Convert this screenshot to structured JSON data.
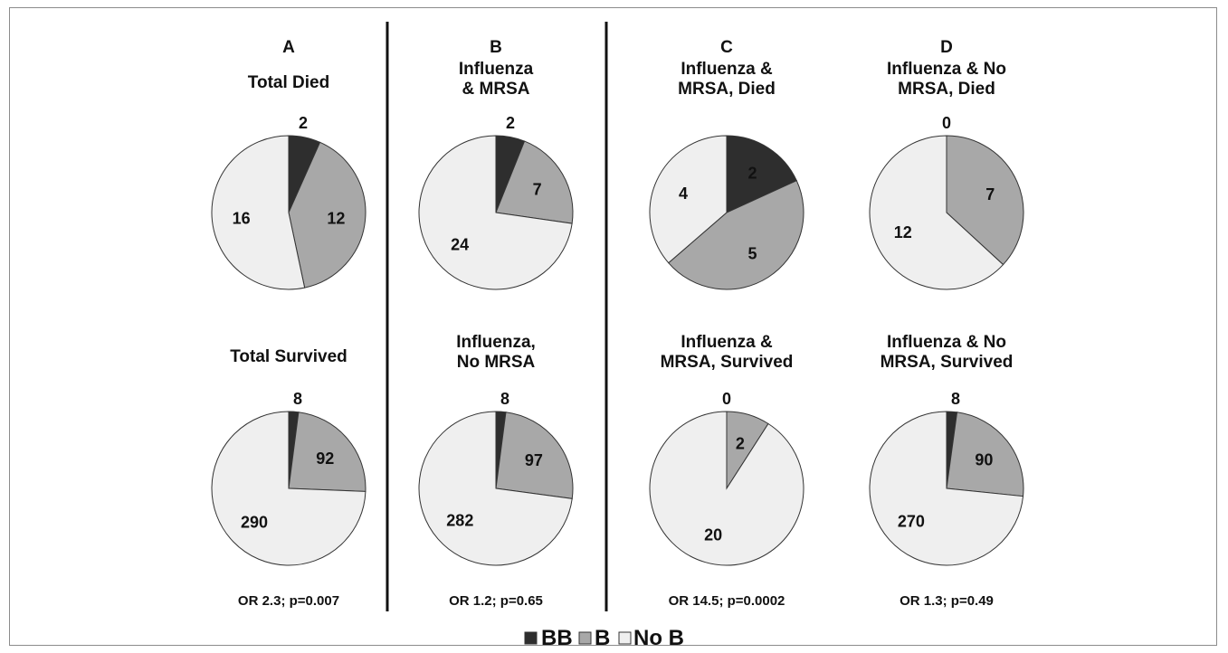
{
  "colors": {
    "BB": "#2e2e2e",
    "B": "#a8a8a8",
    "NoB": "#efefef",
    "stroke": "#333333",
    "divider": "#111111"
  },
  "legend": [
    {
      "key": "BB",
      "label": "BB"
    },
    {
      "key": "B",
      "label": "B"
    },
    {
      "key": "NoB",
      "label": "No B"
    }
  ],
  "columns": [
    {
      "letter": "A",
      "or_text": "OR 2.3; p=0.007"
    },
    {
      "letter": "B",
      "or_text": "OR 1.2; p=0.65"
    },
    {
      "letter": "C",
      "or_text": "OR 14.5; p=0.0002"
    },
    {
      "letter": "D",
      "or_text": "OR 1.3; p=0.49"
    }
  ],
  "chart_data": [
    {
      "type": "pie",
      "title": [
        "Total Died"
      ],
      "categories": [
        "BB",
        "B",
        "No B"
      ],
      "values": [
        2,
        12,
        16
      ]
    },
    {
      "type": "pie",
      "title": [
        "Total Survived"
      ],
      "categories": [
        "BB",
        "B",
        "No B"
      ],
      "values": [
        8,
        92,
        290
      ]
    },
    {
      "type": "pie",
      "title": [
        "Influenza",
        "& MRSA"
      ],
      "categories": [
        "BB",
        "B",
        "No B"
      ],
      "values": [
        2,
        7,
        24
      ]
    },
    {
      "type": "pie",
      "title": [
        "Influenza,",
        "No MRSA"
      ],
      "categories": [
        "BB",
        "B",
        "No B"
      ],
      "values": [
        8,
        97,
        282
      ]
    },
    {
      "type": "pie",
      "title": [
        "Influenza &",
        "MRSA, Died"
      ],
      "categories": [
        "BB",
        "B",
        "No B"
      ],
      "values": [
        2,
        5,
        4
      ]
    },
    {
      "type": "pie",
      "title": [
        "Influenza &",
        "MRSA, Survived"
      ],
      "categories": [
        "BB",
        "B",
        "No B"
      ],
      "values": [
        0,
        2,
        20
      ]
    },
    {
      "type": "pie",
      "title": [
        "Influenza & No",
        "MRSA, Died"
      ],
      "categories": [
        "BB",
        "B",
        "No B"
      ],
      "values": [
        0,
        7,
        12
      ]
    },
    {
      "type": "pie",
      "title": [
        "Influenza & No",
        "MRSA, Survived"
      ],
      "categories": [
        "BB",
        "B",
        "No B"
      ],
      "values": [
        8,
        90,
        270
      ]
    }
  ]
}
